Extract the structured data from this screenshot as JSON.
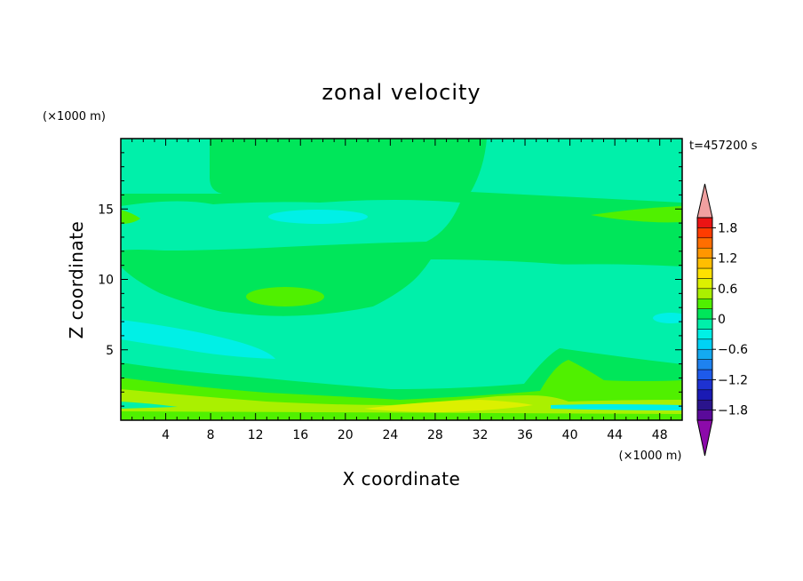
{
  "chart_data": {
    "type": "heatmap",
    "title": "zonal velocity",
    "xlabel": "X coordinate",
    "ylabel": "Z coordinate",
    "x_unit": "(×1000 m)",
    "y_unit": "(×1000 m)",
    "time_label": "t=457200 s",
    "xlim": [
      0,
      50
    ],
    "ylim": [
      0,
      20
    ],
    "x_ticks": [
      "4",
      "8",
      "12",
      "16",
      "20",
      "24",
      "28",
      "32",
      "36",
      "40",
      "44",
      "48"
    ],
    "y_ticks": [
      "5",
      "10",
      "15"
    ],
    "colorbar": {
      "levels": [
        -2.0,
        -1.8,
        -1.6,
        -1.4,
        -1.2,
        -1.0,
        -0.8,
        -0.6,
        -0.4,
        -0.2,
        0.0,
        0.2,
        0.4,
        0.6,
        0.8,
        1.0,
        1.2,
        1.4,
        1.6,
        1.8,
        2.0
      ],
      "colors": [
        "#5a0a9a",
        "#2a148c",
        "#1a1ab4",
        "#1e32d2",
        "#1e5aeb",
        "#1e82f0",
        "#14aaf0",
        "#00d2f5",
        "#00f0e6",
        "#00f0aa",
        "#00e65a",
        "#50f000",
        "#aaf000",
        "#dcf000",
        "#ffe100",
        "#ffbe00",
        "#ff9600",
        "#ff6e00",
        "#ff3c00",
        "#eb1414"
      ],
      "under_color": "#8c0aaa",
      "over_color": "#f0a0a0",
      "labels": [
        "1.8",
        "1.2",
        "0.6",
        "0",
        "−0.6",
        "−1.2",
        "−1.8"
      ],
      "label_values": [
        1.8,
        1.2,
        0.6,
        0.0,
        -0.6,
        -1.2,
        -1.8
      ]
    },
    "grid": false,
    "legend": "colorbar right"
  }
}
